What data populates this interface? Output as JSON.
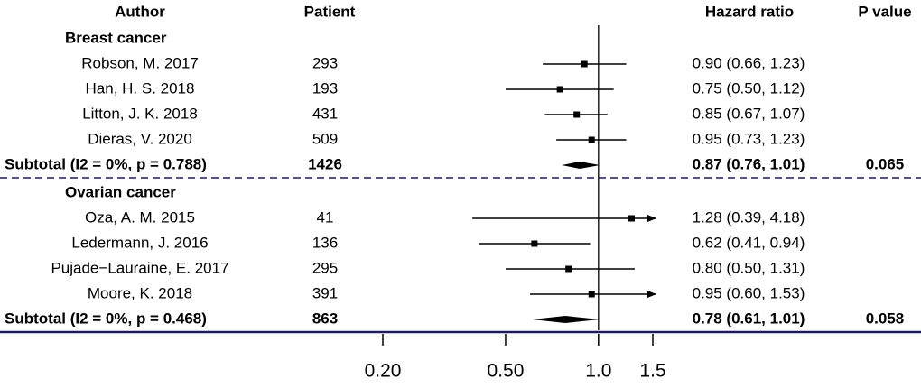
{
  "chart_data": {
    "type": "forest",
    "headers": {
      "author": "Author",
      "patients": "Patient",
      "hr": "Hazard ratio",
      "p": "P value"
    },
    "xlim": [
      0.2,
      1.5
    ],
    "xticks": [
      {
        "value": 0.2,
        "label": "0.20"
      },
      {
        "value": 0.5,
        "label": "0.50"
      },
      {
        "value": 1,
        "label": "1.0"
      },
      1.5
    ],
    "log_x": true,
    "ref_line": 1,
    "color": "#000000",
    "separator_color": "#1c1c5a",
    "groups": [
      {
        "name": "Breast cancer",
        "studies": [
          {
            "author": "Robson, M. 2017",
            "patients": 293,
            "hr": 0.9,
            "ci": [
              0.66,
              1.23
            ],
            "value_label": "0.90 (0.66, 1.23)"
          },
          {
            "author": "Han, H. S. 2018",
            "patients": 193,
            "hr": 0.75,
            "ci": [
              0.5,
              1.12
            ],
            "value_label": "0.75 (0.50, 1.12)"
          },
          {
            "author": "Litton, J. K. 2018",
            "patients": 431,
            "hr": 0.85,
            "ci": [
              0.67,
              1.07
            ],
            "value_label": "0.85 (0.67, 1.07)"
          },
          {
            "author": "Dieras, V. 2020",
            "patients": 509,
            "hr": 0.95,
            "ci": [
              0.73,
              1.23
            ],
            "value_label": "0.95 (0.73, 1.23)"
          }
        ],
        "subtotal": {
          "label": "Subtotal (I2 = 0%, p = 0.788)",
          "patients": 1426,
          "hr": 0.87,
          "ci": [
            0.76,
            1.01
          ],
          "value_label": "0.87 (0.76, 1.01)",
          "p_value": 0.065
        }
      },
      {
        "name": "Ovarian cancer",
        "studies": [
          {
            "author": "Oza, A. M. 2015",
            "patients": 41,
            "hr": 1.28,
            "ci": [
              0.39,
              4.18
            ],
            "value_label": "1.28 (0.39, 4.18)"
          },
          {
            "author": "Ledermann, J. 2016",
            "patients": 136,
            "hr": 0.62,
            "ci": [
              0.41,
              0.94
            ],
            "value_label": "0.62 (0.41, 0.94)"
          },
          {
            "author": "Pujade−Lauraine, E. 2017",
            "patients": 295,
            "hr": 0.8,
            "ci": [
              0.5,
              1.31
            ],
            "value_label": "0.80 (0.50, 1.31)"
          },
          {
            "author": "Moore, K. 2018",
            "patients": 391,
            "hr": 0.95,
            "ci": [
              0.6,
              1.53
            ],
            "value_label": "0.95 (0.60, 1.53)"
          }
        ],
        "subtotal": {
          "label": "Subtotal (I2 = 0%, p = 0.468)",
          "patients": 863,
          "hr": 0.78,
          "ci": [
            0.61,
            1.01
          ],
          "value_label": "0.78 (0.61, 1.01)",
          "p_value": 0.058
        }
      }
    ]
  }
}
